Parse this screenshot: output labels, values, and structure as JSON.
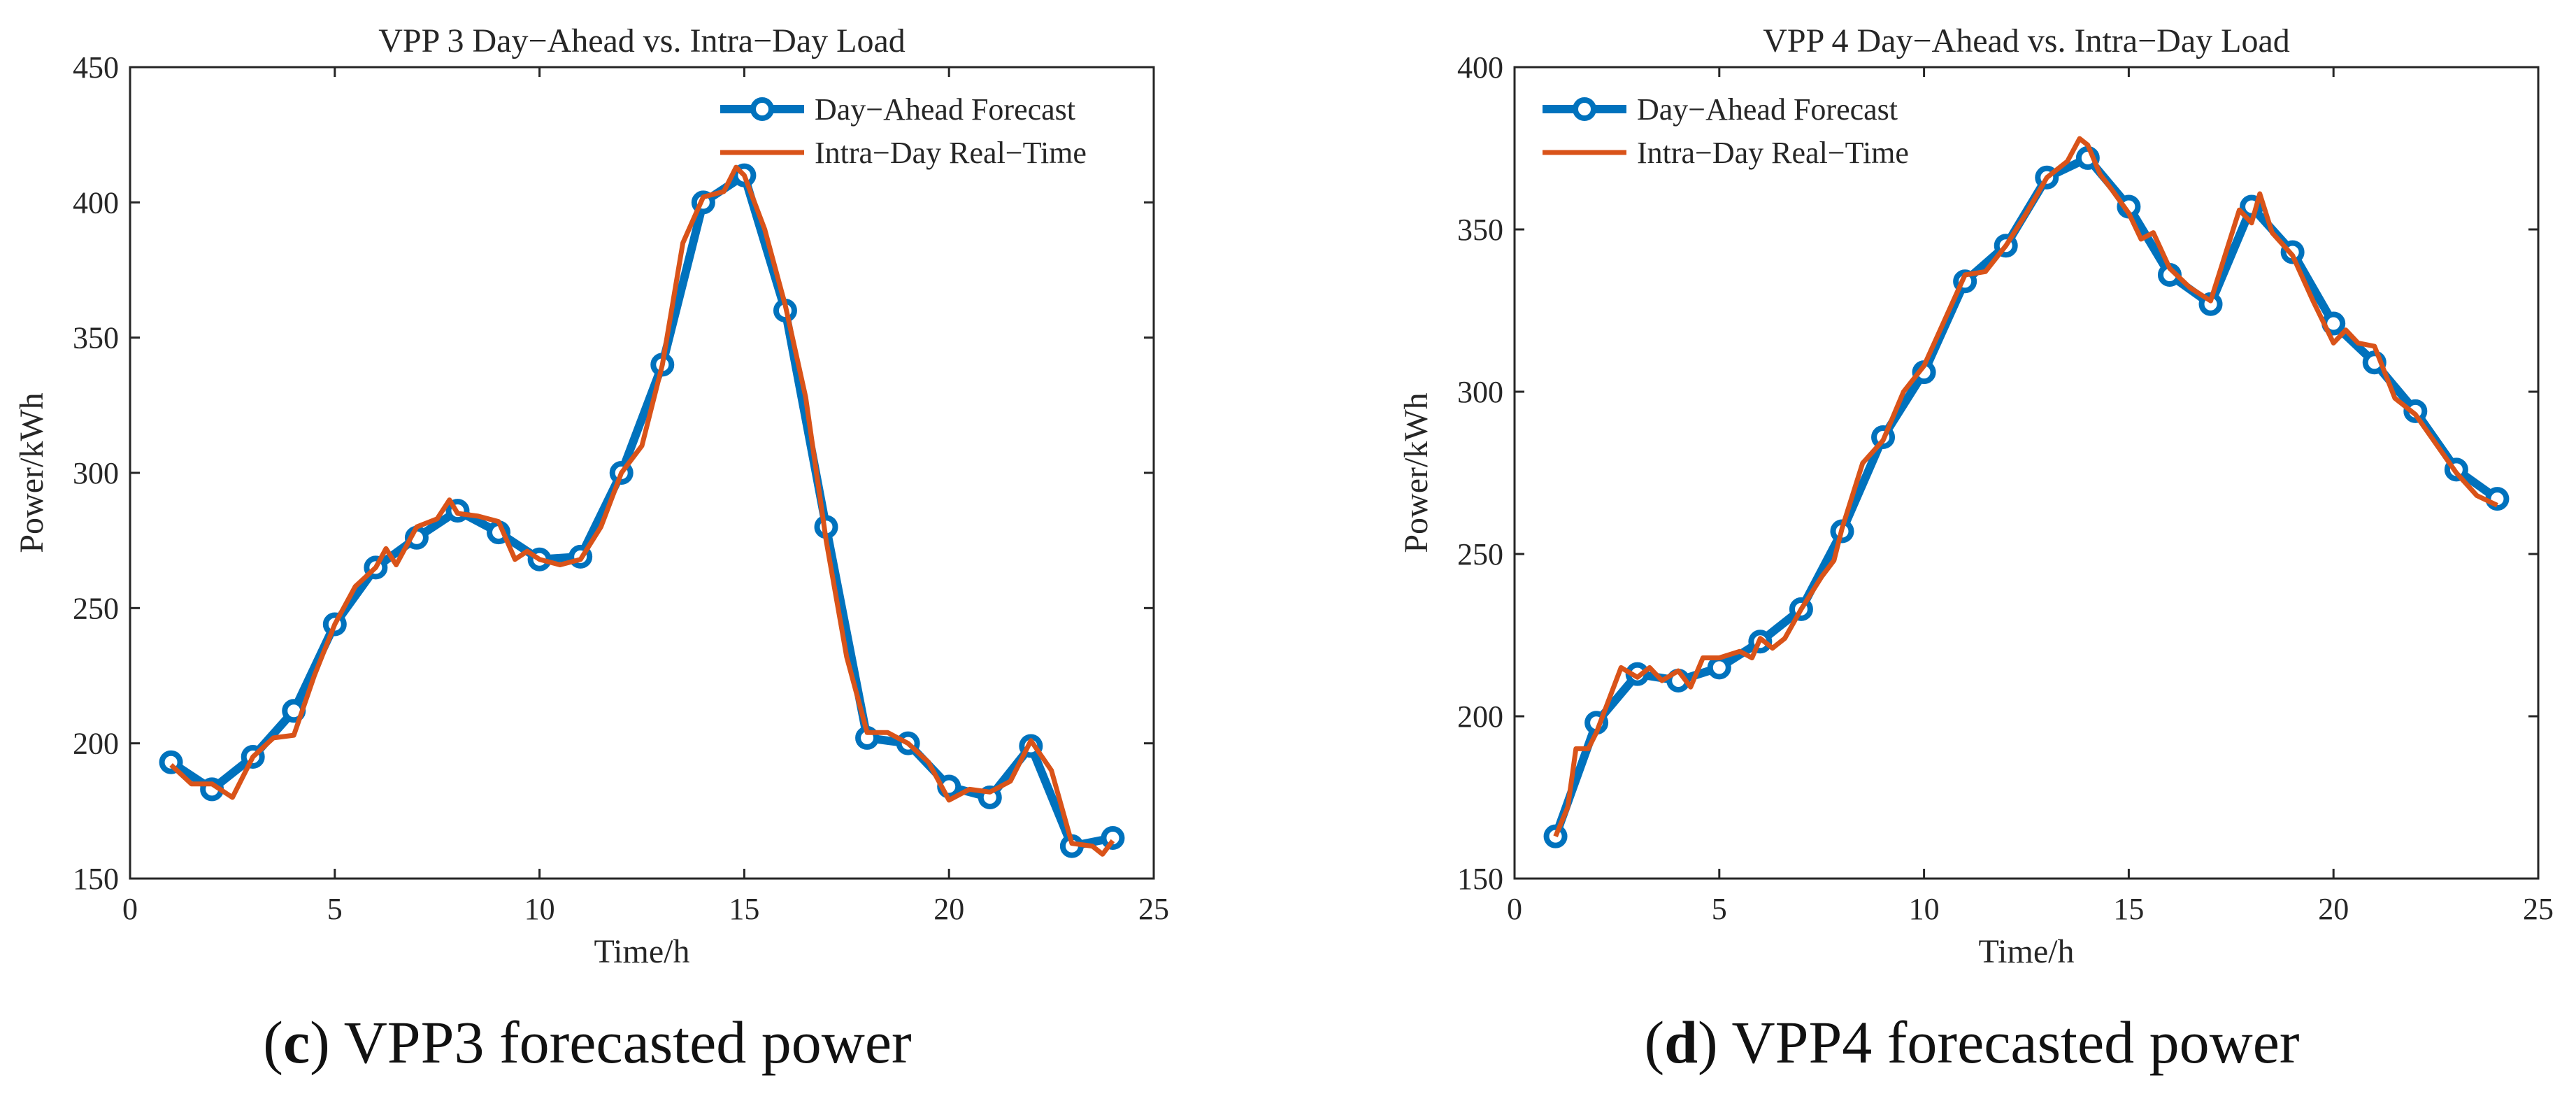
{
  "chart_data": [
    {
      "type": "line",
      "title": "VPP 3 Day−Ahead vs. Intra−Day Load",
      "xlabel": "Time/h",
      "ylabel": "Power/kWh",
      "xlim": [
        0,
        25
      ],
      "ylim": [
        150,
        450
      ],
      "xticks": [
        "0",
        "5",
        "10",
        "15",
        "20",
        "25"
      ],
      "yticks": [
        "150",
        "200",
        "250",
        "300",
        "350",
        "400",
        "450"
      ],
      "legend_position": "top-right",
      "series": [
        {
          "name": "Day−Ahead Forecast",
          "color": "#0072BD",
          "marker": "circle",
          "x": [
            1,
            2,
            3,
            4,
            5,
            6,
            7,
            8,
            9,
            10,
            11,
            12,
            13,
            14,
            15,
            16,
            17,
            18,
            19,
            20,
            21,
            22,
            23,
            24
          ],
          "values": [
            193,
            183,
            195,
            212,
            244,
            265,
            276,
            286,
            278,
            268,
            269,
            300,
            340,
            400,
            410,
            360,
            280,
            202,
            200,
            184,
            180,
            199,
            162,
            165
          ]
        },
        {
          "name": "Intra−Day Real−Time",
          "color": "#D95319",
          "marker": "none",
          "x": [
            1,
            1.5,
            2,
            2.5,
            3,
            3.5,
            4,
            4.5,
            5,
            5.5,
            6,
            6.25,
            6.5,
            7,
            7.5,
            7.8,
            8,
            8.5,
            9,
            9.4,
            9.7,
            10,
            10.5,
            11,
            11.5,
            12,
            12.5,
            13,
            13.5,
            14,
            14.5,
            14.8,
            15,
            15.5,
            16,
            16.5,
            17,
            17.5,
            18,
            18.5,
            19,
            19.5,
            20,
            20.5,
            21,
            21.5,
            22,
            22.5,
            23,
            23.5,
            23.75,
            24
          ],
          "values": [
            192,
            185,
            185,
            180,
            195,
            202,
            203,
            225,
            244,
            258,
            265,
            272,
            266,
            280,
            283,
            290,
            285,
            284,
            282,
            268,
            271,
            268,
            266,
            268,
            280,
            300,
            310,
            340,
            385,
            402,
            404,
            413,
            410,
            390,
            362,
            328,
            275,
            232,
            204,
            204,
            200,
            193,
            179,
            183,
            182,
            186,
            201,
            190,
            163,
            162,
            159,
            164
          ]
        }
      ],
      "caption": {
        "label": "c",
        "text": ") VPP3 forecasted power",
        "open": "("
      }
    },
    {
      "type": "line",
      "title": "VPP 4 Day−Ahead vs. Intra−Day Load",
      "xlabel": "Time/h",
      "ylabel": "Power/kWh",
      "xlim": [
        0,
        25
      ],
      "ylim": [
        150,
        400
      ],
      "xticks": [
        "0",
        "5",
        "10",
        "15",
        "20",
        "25"
      ],
      "yticks": [
        "150",
        "200",
        "250",
        "300",
        "350",
        "400"
      ],
      "legend_position": "top-left",
      "series": [
        {
          "name": "Day−Ahead Forecast",
          "color": "#0072BD",
          "marker": "circle",
          "x": [
            1,
            2,
            3,
            4,
            5,
            6,
            7,
            8,
            9,
            10,
            11,
            12,
            13,
            14,
            15,
            16,
            17,
            18,
            19,
            20,
            21,
            22,
            23,
            24
          ],
          "values": [
            163,
            198,
            213,
            211,
            215,
            223,
            233,
            257,
            286,
            306,
            334,
            345,
            366,
            372,
            357,
            336,
            327,
            357,
            343,
            321,
            309,
            294,
            276,
            267
          ]
        },
        {
          "name": "Intra−Day Real−Time",
          "color": "#D95319",
          "marker": "none",
          "x": [
            1,
            1.3,
            1.5,
            1.8,
            2,
            2.3,
            2.6,
            3,
            3.3,
            3.6,
            4,
            4.3,
            4.6,
            5,
            5.5,
            5.8,
            6,
            6.3,
            6.6,
            7,
            7.5,
            7.8,
            8,
            8.5,
            9,
            9.5,
            10,
            10.5,
            11,
            11.5,
            12,
            12.5,
            13,
            13.5,
            13.8,
            14,
            14.3,
            14.6,
            15,
            15.3,
            15.6,
            16,
            16.5,
            17,
            17.3,
            17.7,
            18,
            18.2,
            18.5,
            19,
            19.5,
            20,
            20.3,
            20.6,
            21,
            21.5,
            22,
            22.5,
            23,
            23.5,
            24
          ],
          "values": [
            163,
            172,
            190,
            190,
            195,
            205,
            215,
            212,
            215,
            211,
            214,
            209,
            218,
            218,
            220,
            218,
            224,
            221,
            224,
            233,
            243,
            248,
            258,
            278,
            285,
            300,
            308,
            322,
            336,
            337,
            345,
            355,
            366,
            371,
            378,
            376,
            367,
            362,
            355,
            347,
            349,
            338,
            332,
            328,
            340,
            356,
            352,
            361,
            349,
            342,
            328,
            315,
            319,
            315,
            314,
            298,
            293,
            284,
            275,
            268,
            265
          ]
        }
      ],
      "caption": {
        "label": "d",
        "text": ") VPP4 forecasted power",
        "open": "("
      }
    }
  ]
}
